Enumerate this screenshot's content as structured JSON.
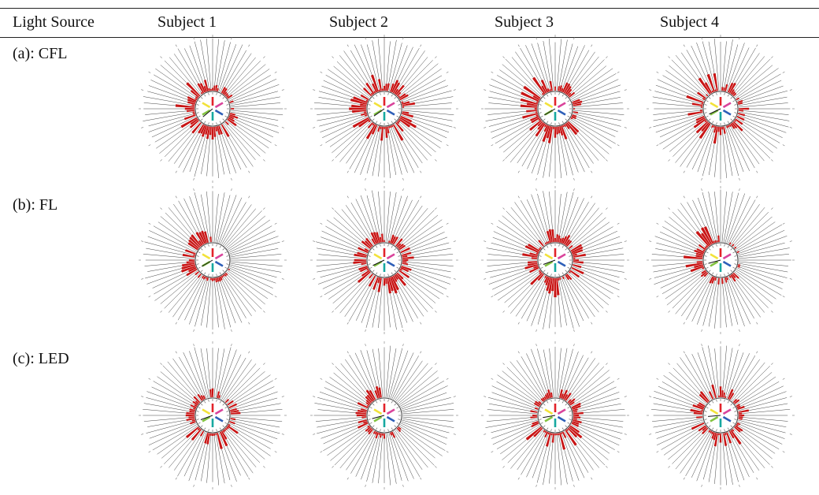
{
  "table": {
    "header": {
      "col0": "Light Source",
      "subjects": [
        "Subject 1",
        "Subject 2",
        "Subject 3",
        "Subject 4"
      ]
    },
    "rows": [
      {
        "label": "(a): CFL"
      },
      {
        "label": "(b): FL"
      },
      {
        "label": "(c): LED"
      }
    ]
  },
  "colors": {
    "bar": "#c81414",
    "spoke": "#444444",
    "center_lines": [
      "#e2232a",
      "#d9449b",
      "#2e5fb8",
      "#17a8a0",
      "#84c341",
      "#f2e23a"
    ]
  },
  "charts": {
    "type": "radial-bar",
    "spokes": 72,
    "center_wavelength_labels": "clock-face wavelength ticks"
  }
}
